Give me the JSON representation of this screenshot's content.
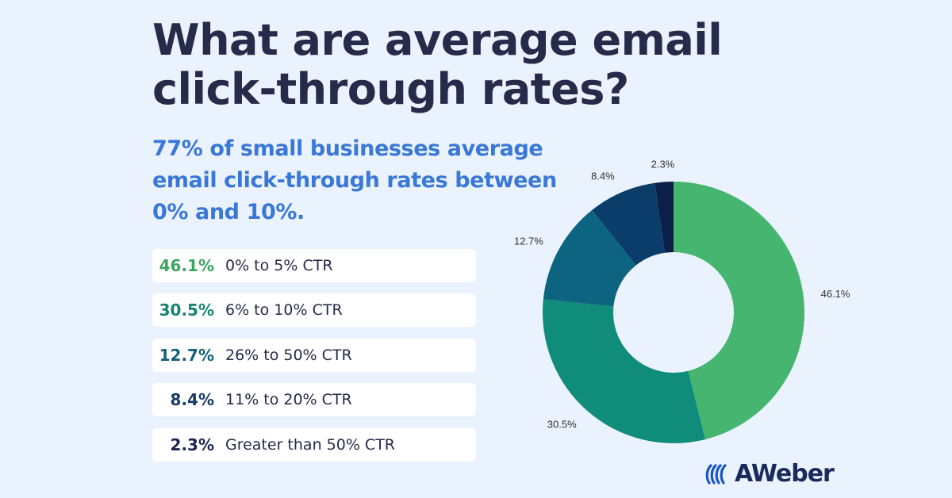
{
  "title": "What are average email click-through rates?",
  "subtitle": "77% of small businesses average email click-through rates between 0% and 10%.",
  "brand": {
    "name": "AWeber",
    "icon": "aweber-logo-icon",
    "color": "#1a56c4"
  },
  "chart_data": {
    "type": "pie",
    "donut": true,
    "slices": [
      {
        "label": "0% to 5% CTR",
        "value": 46.1,
        "display": "46.1%",
        "color": "#46b56f",
        "text_color": "#3aa55f"
      },
      {
        "label": "6% to 10% CTR",
        "value": 30.5,
        "display": "30.5%",
        "color": "#0f8c7a",
        "text_color": "#168370"
      },
      {
        "label": "26% to 50% CTR",
        "value": 12.7,
        "display": "12.7%",
        "color": "#0d6480",
        "text_color": "#15607a"
      },
      {
        "label": "11% to 20% CTR",
        "value": 8.4,
        "display": "8.4%",
        "color": "#0b3d6b",
        "text_color": "#1a3a66"
      },
      {
        "label": "Greater than 50% CTR",
        "value": 2.3,
        "display": "2.3%",
        "color": "#0b1f48",
        "text_color": "#1a2550"
      }
    ],
    "legend_placement": "left"
  }
}
